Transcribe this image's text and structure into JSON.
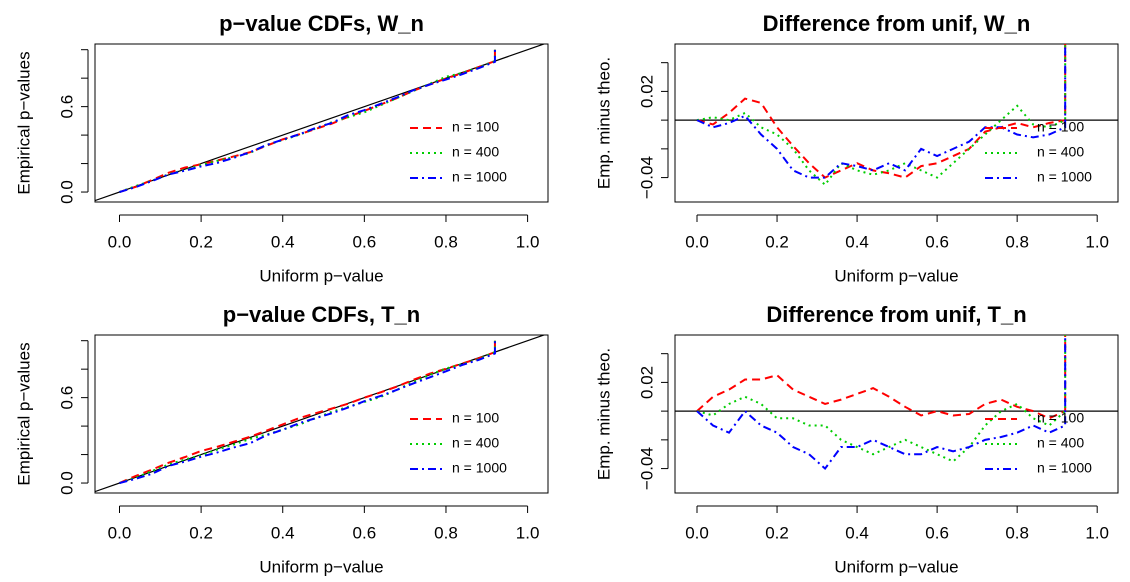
{
  "chart_data": [
    {
      "type": "line",
      "title": "p−value CDFs, W_n",
      "xlabel": "Uniform p−value",
      "ylabel": "Empirical p−values",
      "x": [
        0,
        0.04,
        0.08,
        0.12,
        0.16,
        0.2,
        0.24,
        0.28,
        0.32,
        0.36,
        0.4,
        0.44,
        0.48,
        0.52,
        0.56,
        0.6,
        0.64,
        0.68,
        0.72,
        0.76,
        0.8,
        0.84,
        0.88,
        0.92,
        0.92
      ],
      "series": [
        {
          "name": "n = 100",
          "color": "#ff0000",
          "linestyle": "dashed",
          "values": [
            0,
            0.037,
            0.085,
            0.135,
            0.172,
            0.195,
            0.222,
            0.25,
            0.28,
            0.325,
            0.37,
            0.405,
            0.443,
            0.48,
            0.528,
            0.57,
            0.615,
            0.66,
            0.712,
            0.755,
            0.798,
            0.835,
            0.878,
            0.92,
            1.0
          ]
        },
        {
          "name": "n = 400",
          "color": "#00cd00",
          "linestyle": "dotted",
          "values": [
            0,
            0.042,
            0.08,
            0.125,
            0.155,
            0.19,
            0.22,
            0.245,
            0.275,
            0.33,
            0.365,
            0.402,
            0.445,
            0.49,
            0.525,
            0.56,
            0.61,
            0.66,
            0.71,
            0.76,
            0.81,
            0.837,
            0.875,
            0.92,
            1.0
          ]
        },
        {
          "name": "n = 1000",
          "color": "#0000ff",
          "linestyle": "dashdot",
          "values": [
            0,
            0.035,
            0.078,
            0.123,
            0.15,
            0.18,
            0.205,
            0.24,
            0.28,
            0.33,
            0.368,
            0.405,
            0.45,
            0.485,
            0.54,
            0.575,
            0.62,
            0.665,
            0.715,
            0.755,
            0.79,
            0.828,
            0.87,
            0.915,
            1.0
          ]
        }
      ],
      "xlim": [
        -0.06,
        1.05
      ],
      "ylim": [
        -0.07,
        1.04
      ],
      "xticks": [
        {
          "value": 0,
          "label": "0.0"
        },
        0.2,
        0.4,
        0.6,
        0.8,
        {
          "value": 1,
          "label": "1.0"
        }
      ],
      "yticks": [
        {
          "value": 0,
          "label": "0.0"
        },
        0.6
      ],
      "ytick_marks": [
        0,
        0.2,
        0.4,
        0.6,
        0.8,
        1
      ],
      "abline": [
        0,
        1
      ],
      "legend": "right"
    },
    {
      "type": "line",
      "title": "Difference from unif, W_n",
      "xlabel": "Uniform p−value",
      "ylabel": "Emp. minus theo.",
      "x": [
        0,
        0.04,
        0.08,
        0.12,
        0.16,
        0.2,
        0.24,
        0.28,
        0.32,
        0.36,
        0.4,
        0.44,
        0.48,
        0.52,
        0.56,
        0.6,
        0.64,
        0.68,
        0.72,
        0.76,
        0.8,
        0.84,
        0.88,
        0.92,
        0.92
      ],
      "series": [
        {
          "name": "n = 100",
          "color": "#ff0000",
          "linestyle": "dashed",
          "values": [
            0,
            -0.003,
            0.005,
            0.015,
            0.012,
            -0.005,
            -0.018,
            -0.03,
            -0.04,
            -0.035,
            -0.03,
            -0.035,
            -0.037,
            -0.04,
            -0.032,
            -0.03,
            -0.025,
            -0.02,
            -0.008,
            -0.005,
            -0.002,
            -0.005,
            -0.002,
            0,
            0.06
          ]
        },
        {
          "name": "n = 400",
          "color": "#00cd00",
          "linestyle": "dotted",
          "values": [
            0,
            0.002,
            0,
            0.005,
            -0.005,
            -0.01,
            -0.02,
            -0.035,
            -0.045,
            -0.03,
            -0.035,
            -0.038,
            -0.035,
            -0.03,
            -0.035,
            -0.04,
            -0.03,
            -0.02,
            -0.01,
            0,
            0.01,
            -0.003,
            -0.005,
            0,
            0.06
          ]
        },
        {
          "name": "n = 1000",
          "color": "#0000ff",
          "linestyle": "dashdot",
          "values": [
            0,
            -0.005,
            -0.002,
            0.003,
            -0.01,
            -0.02,
            -0.035,
            -0.04,
            -0.04,
            -0.03,
            -0.032,
            -0.035,
            -0.03,
            -0.035,
            -0.02,
            -0.025,
            -0.02,
            -0.015,
            -0.005,
            -0.005,
            -0.01,
            -0.012,
            -0.01,
            -0.005,
            0.06
          ]
        }
      ],
      "xlim": [
        -0.055,
        1.052
      ],
      "ylim": [
        -0.057,
        0.053
      ],
      "xticks": [
        {
          "value": 0,
          "label": "0.0"
        },
        0.2,
        0.4,
        0.6,
        0.8,
        {
          "value": 1,
          "label": "1.0"
        }
      ],
      "yticks": [
        0.02,
        {
          "value": -0.04,
          "label": "−0.04"
        }
      ],
      "ytick_marks": [
        0.04,
        0.02,
        0,
        -0.02,
        -0.04
      ],
      "hline": 0,
      "legend": "right"
    },
    {
      "type": "line",
      "title": "p−value CDFs, T_n",
      "xlabel": "Uniform p−value",
      "ylabel": "Empirical p−values",
      "x": [
        0,
        0.04,
        0.08,
        0.12,
        0.16,
        0.2,
        0.24,
        0.28,
        0.32,
        0.36,
        0.4,
        0.44,
        0.48,
        0.52,
        0.56,
        0.6,
        0.64,
        0.68,
        0.72,
        0.76,
        0.8,
        0.84,
        0.88,
        0.92,
        0.92
      ],
      "series": [
        {
          "name": "n = 100",
          "color": "#ff0000",
          "linestyle": "dashed",
          "values": [
            0,
            0.05,
            0.095,
            0.142,
            0.182,
            0.225,
            0.255,
            0.29,
            0.325,
            0.368,
            0.412,
            0.456,
            0.49,
            0.523,
            0.557,
            0.6,
            0.637,
            0.678,
            0.725,
            0.768,
            0.803,
            0.84,
            0.875,
            0.92,
            1.0
          ]
        },
        {
          "name": "n = 400",
          "color": "#00cd00",
          "linestyle": "dotted",
          "values": [
            0,
            0.037,
            0.085,
            0.13,
            0.165,
            0.195,
            0.235,
            0.27,
            0.31,
            0.34,
            0.375,
            0.41,
            0.455,
            0.5,
            0.535,
            0.57,
            0.605,
            0.655,
            0.71,
            0.76,
            0.805,
            0.835,
            0.87,
            0.92,
            1.0
          ]
        },
        {
          "name": "n = 1000",
          "color": "#0000ff",
          "linestyle": "dashdot",
          "values": [
            0,
            0.03,
            0.065,
            0.12,
            0.15,
            0.185,
            0.215,
            0.25,
            0.28,
            0.335,
            0.375,
            0.42,
            0.455,
            0.49,
            0.53,
            0.575,
            0.612,
            0.655,
            0.7,
            0.742,
            0.785,
            0.83,
            0.865,
            0.91,
            1.0
          ]
        }
      ],
      "xlim": [
        -0.06,
        1.05
      ],
      "ylim": [
        -0.07,
        1.04
      ],
      "xticks": [
        {
          "value": 0,
          "label": "0.0"
        },
        0.2,
        0.4,
        0.6,
        0.8,
        {
          "value": 1,
          "label": "1.0"
        }
      ],
      "yticks": [
        {
          "value": 0,
          "label": "0.0"
        },
        0.6
      ],
      "ytick_marks": [
        0,
        0.2,
        0.4,
        0.6,
        0.8,
        1
      ],
      "abline": [
        0,
        1
      ],
      "legend": "right"
    },
    {
      "type": "line",
      "title": "Difference from unif, T_n",
      "xlabel": "Uniform p−value",
      "ylabel": "Emp. minus theo.",
      "x": [
        0,
        0.04,
        0.08,
        0.12,
        0.16,
        0.2,
        0.24,
        0.28,
        0.32,
        0.36,
        0.4,
        0.44,
        0.48,
        0.52,
        0.56,
        0.6,
        0.64,
        0.68,
        0.72,
        0.76,
        0.8,
        0.84,
        0.88,
        0.92,
        0.92
      ],
      "series": [
        {
          "name": "n = 100",
          "color": "#ff0000",
          "linestyle": "dashed",
          "values": [
            0,
            0.01,
            0.015,
            0.022,
            0.022,
            0.025,
            0.015,
            0.01,
            0.005,
            0.008,
            0.012,
            0.016,
            0.01,
            0.003,
            -0.003,
            0,
            -0.003,
            -0.002,
            0.005,
            0.008,
            0.003,
            0,
            -0.005,
            0,
            0.06
          ]
        },
        {
          "name": "n = 400",
          "color": "#00cd00",
          "linestyle": "dotted",
          "values": [
            0,
            -0.003,
            0.005,
            0.01,
            0.005,
            -0.005,
            -0.005,
            -0.01,
            -0.01,
            -0.02,
            -0.025,
            -0.03,
            -0.025,
            -0.02,
            -0.025,
            -0.03,
            -0.035,
            -0.025,
            -0.01,
            0,
            0.005,
            -0.005,
            -0.01,
            0,
            0.06
          ]
        },
        {
          "name": "n = 1000",
          "color": "#0000ff",
          "linestyle": "dashdot",
          "values": [
            0,
            -0.01,
            -0.015,
            0,
            -0.01,
            -0.015,
            -0.025,
            -0.03,
            -0.04,
            -0.025,
            -0.025,
            -0.02,
            -0.025,
            -0.03,
            -0.03,
            -0.025,
            -0.028,
            -0.025,
            -0.02,
            -0.018,
            -0.015,
            -0.01,
            -0.015,
            -0.01,
            0.06
          ]
        }
      ],
      "xlim": [
        -0.055,
        1.052
      ],
      "ylim": [
        -0.057,
        0.053
      ],
      "xticks": [
        {
          "value": 0,
          "label": "0.0"
        },
        0.2,
        0.4,
        0.6,
        0.8,
        {
          "value": 1,
          "label": "1.0"
        }
      ],
      "yticks": [
        0.02,
        {
          "value": -0.04,
          "label": "−0.04"
        }
      ],
      "ytick_marks": [
        0.04,
        0.02,
        0,
        -0.02,
        -0.04
      ],
      "hline": 0,
      "legend": "right"
    }
  ]
}
